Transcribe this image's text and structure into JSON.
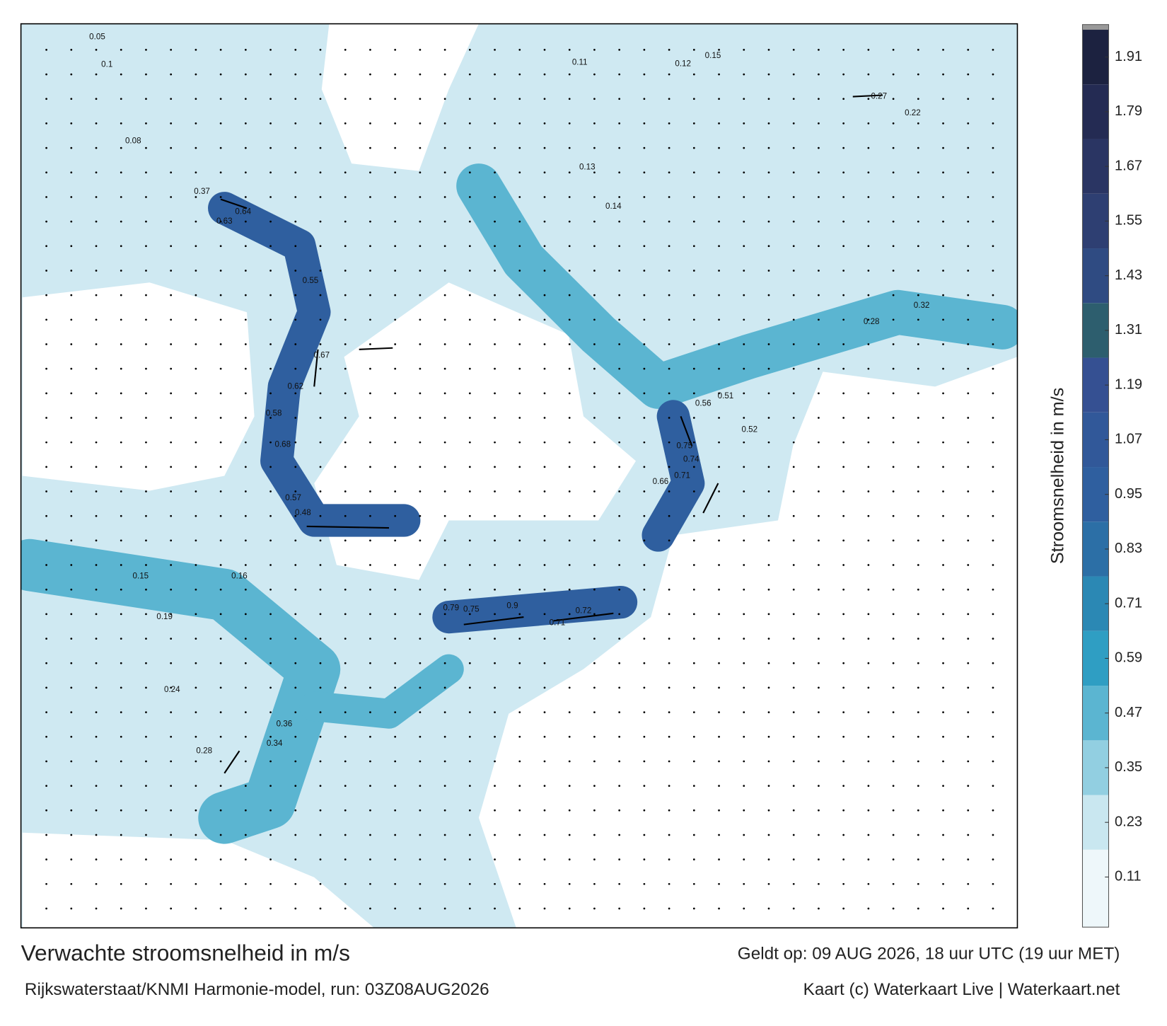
{
  "header": {
    "title": "Verwachte stroomsnelheid in m/s",
    "valid": "Geldt op: 09 AUG 2026, 18 uur UTC (19 uur MET)",
    "model": "Rijkswaterstaat/KNMI Harmonie-model, run: 03Z08AUG2026",
    "credit": "Kaart (c) Waterkaart Live | Waterkaart.net"
  },
  "colorbar": {
    "label": "Stroomsnelheid in m/s",
    "ylim": [
      0,
      1.97
    ],
    "yticks": [
      0.11,
      0.23,
      0.35,
      0.47,
      0.59,
      0.71,
      0.83,
      0.95,
      1.07,
      1.19,
      1.31,
      1.43,
      1.55,
      1.67,
      1.79,
      1.91
    ],
    "colors": [
      "#eef7fa",
      "#c9e7f0",
      "#92cfe1",
      "#5bb5d1",
      "#2f9ec3",
      "#2b88b4",
      "#2c6fa6",
      "#2f5f9f",
      "#315899",
      "#355092",
      "#2d5e6e",
      "#2f4b82",
      "#2e3f72",
      "#2a3563",
      "#242b53",
      "#1c2240"
    ]
  },
  "map": {
    "labels": [
      0.64,
      0.37,
      0.63,
      0.55,
      0.67,
      0.62,
      0.58,
      0.68,
      0.57,
      0.48,
      0.75,
      0.79,
      0.9,
      0.72,
      0.71,
      0.75,
      0.74,
      0.71,
      0.66,
      0.56,
      0.51,
      0.52,
      0.12,
      0.15,
      0.27,
      0.22,
      0.32,
      0.28,
      0.16,
      0.15,
      0.19,
      0.24,
      0.28,
      0.36,
      0.34,
      0.11,
      0.13,
      0.14,
      0.05,
      0.1,
      0.08
    ]
  }
}
